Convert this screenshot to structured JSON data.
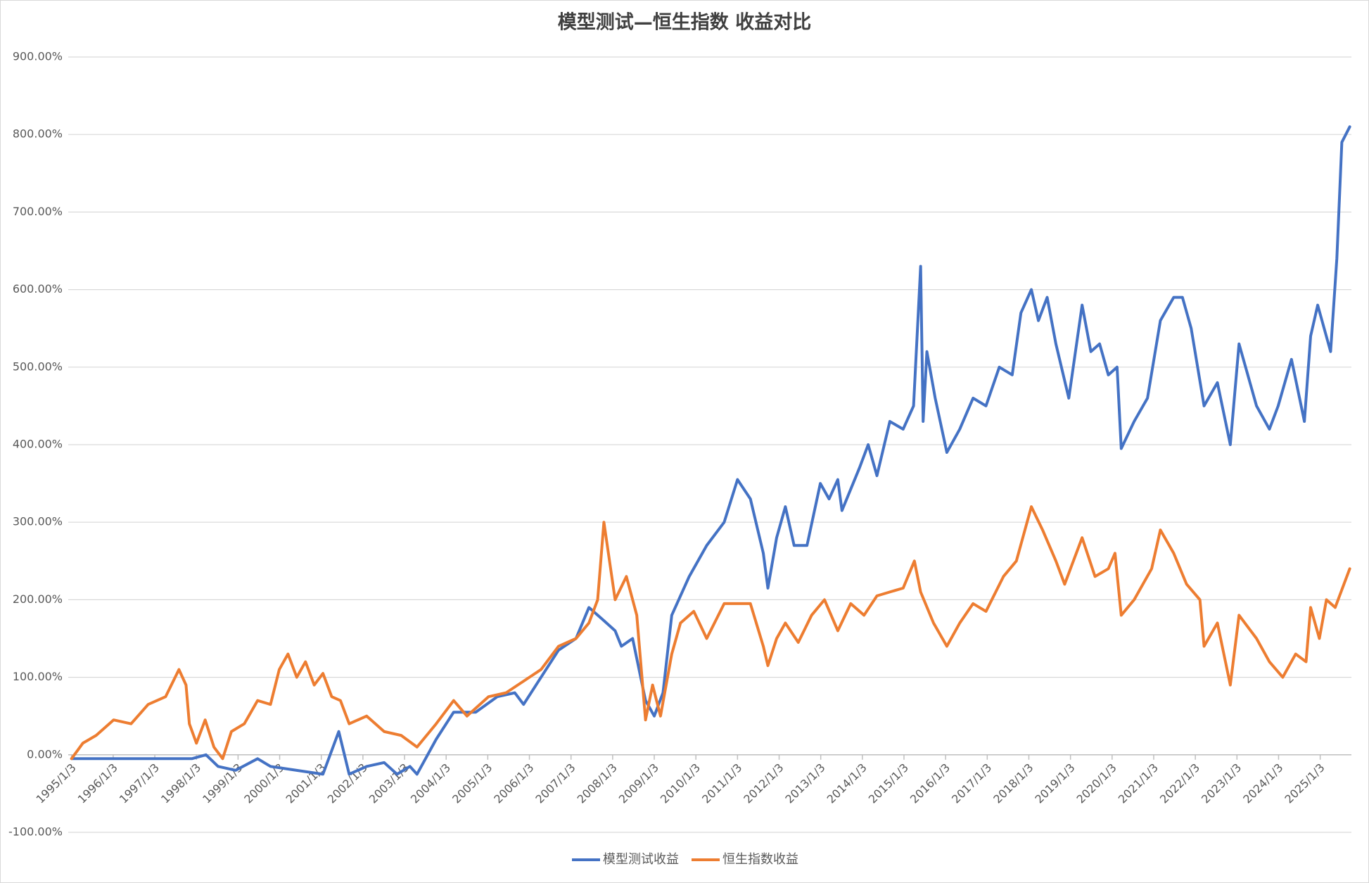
{
  "chart_data": {
    "type": "line",
    "title": "模型测试—恒生指数  收益对比",
    "xlim": [
      1994.92,
      2025.75
    ],
    "ylim": [
      -100,
      900
    ],
    "grid": true,
    "legend": "bottom",
    "xticks": [
      {
        "value": 1995,
        "label": "1995/1/3"
      },
      {
        "value": 1996,
        "label": "1996/1/3"
      },
      {
        "value": 1997,
        "label": "1997/1/3"
      },
      {
        "value": 1998,
        "label": "1998/1/3"
      },
      {
        "value": 1999,
        "label": "1999/1/3"
      },
      {
        "value": 2000,
        "label": "2000/1/3"
      },
      {
        "value": 2001,
        "label": "2001/1/3"
      },
      {
        "value": 2002,
        "label": "2002/1/3"
      },
      {
        "value": 2003,
        "label": "2003/1/3"
      },
      {
        "value": 2004,
        "label": "2004/1/3"
      },
      {
        "value": 2005,
        "label": "2005/1/3"
      },
      {
        "value": 2006,
        "label": "2006/1/3"
      },
      {
        "value": 2007,
        "label": "2007/1/3"
      },
      {
        "value": 2008,
        "label": "2008/1/3"
      },
      {
        "value": 2009,
        "label": "2009/1/3"
      },
      {
        "value": 2010,
        "label": "2010/1/3"
      },
      {
        "value": 2011,
        "label": "2011/1/3"
      },
      {
        "value": 2012,
        "label": "2012/1/3"
      },
      {
        "value": 2013,
        "label": "2013/1/3"
      },
      {
        "value": 2014,
        "label": "2014/1/3"
      },
      {
        "value": 2015,
        "label": "2015/1/3"
      },
      {
        "value": 2016,
        "label": "2016/1/3"
      },
      {
        "value": 2017,
        "label": "2017/1/3"
      },
      {
        "value": 2018,
        "label": "2018/1/3"
      },
      {
        "value": 2019,
        "label": "2019/1/3"
      },
      {
        "value": 2020,
        "label": "2020/1/3"
      },
      {
        "value": 2021,
        "label": "2021/1/3"
      },
      {
        "value": 2022,
        "label": "2022/1/3"
      },
      {
        "value": 2023,
        "label": "2023/1/3"
      },
      {
        "value": 2024,
        "label": "2024/1/3"
      },
      {
        "value": 2025,
        "label": "2025/1/3"
      }
    ],
    "yticks": [
      {
        "value": -100,
        "label": "-100.00%"
      },
      {
        "value": 0,
        "label": "0.00%"
      },
      {
        "value": 100,
        "label": "100.00%"
      },
      {
        "value": 200,
        "label": "200.00%"
      },
      {
        "value": 300,
        "label": "300.00%"
      },
      {
        "value": 400,
        "label": "400.00%"
      },
      {
        "value": 500,
        "label": "500.00%"
      },
      {
        "value": 600,
        "label": "600.00%"
      },
      {
        "value": 700,
        "label": "700.00%"
      },
      {
        "value": 800,
        "label": "800.00%"
      },
      {
        "value": 900,
        "label": "900.00%"
      }
    ],
    "series": [
      {
        "name": "模型测试收益",
        "color": "#4472c4",
        "x": [
          1995.0,
          1997.89,
          1998.23,
          1998.52,
          1998.94,
          1999.47,
          1999.78,
          2000.41,
          2001.04,
          2001.42,
          2001.67,
          2002.09,
          2002.51,
          2002.82,
          2003.13,
          2003.3,
          2003.76,
          2004.18,
          2004.71,
          2005.23,
          2005.65,
          2005.86,
          2006.28,
          2006.7,
          2007.12,
          2007.43,
          2007.75,
          2008.06,
          2008.21,
          2008.48,
          2008.79,
          2009.0,
          2009.21,
          2009.42,
          2009.84,
          2010.26,
          2010.68,
          2011.0,
          2011.31,
          2011.62,
          2011.73,
          2011.94,
          2012.15,
          2012.36,
          2012.67,
          2012.99,
          2013.2,
          2013.41,
          2013.51,
          2013.93,
          2014.14,
          2014.35,
          2014.66,
          2014.98,
          2015.23,
          2015.4,
          2015.46,
          2015.55,
          2015.75,
          2016.03,
          2016.34,
          2016.66,
          2016.97,
          2017.29,
          2017.6,
          2017.81,
          2018.06,
          2018.23,
          2018.44,
          2018.65,
          2018.96,
          2019.28,
          2019.49,
          2019.7,
          2019.91,
          2020.12,
          2020.22,
          2020.53,
          2020.85,
          2021.16,
          2021.48,
          2021.69,
          2021.9,
          2022.21,
          2022.53,
          2022.84,
          2023.05,
          2023.47,
          2023.78,
          2023.99,
          2024.31,
          2024.62,
          2024.77,
          2024.94,
          2025.25,
          2025.4,
          2025.52,
          2025.71
        ],
        "values": [
          -5,
          -5,
          0,
          -15,
          -20,
          -5,
          -15,
          -20,
          -25,
          30,
          -25,
          -15,
          -10,
          -25,
          -15,
          -25,
          20,
          55,
          55,
          75,
          80,
          65,
          100,
          135,
          150,
          190,
          175,
          160,
          140,
          150,
          70,
          50,
          80,
          180,
          230,
          270,
          300,
          355,
          330,
          260,
          215,
          280,
          320,
          270,
          270,
          350,
          330,
          355,
          315,
          370,
          400,
          360,
          430,
          420,
          450,
          630,
          430,
          520,
          460,
          390,
          420,
          460,
          450,
          500,
          490,
          570,
          600,
          560,
          590,
          530,
          460,
          580,
          520,
          530,
          490,
          500,
          395,
          430,
          460,
          560,
          590,
          590,
          550,
          450,
          480,
          400,
          530,
          450,
          420,
          450,
          510,
          430,
          540,
          580,
          520,
          640,
          790,
          810
        ]
      },
      {
        "name": "恒生指数收益",
        "color": "#ed7d31",
        "x": [
          1995.0,
          1995.27,
          1995.59,
          1996.01,
          1996.43,
          1996.84,
          1997.26,
          1997.58,
          1997.75,
          1997.83,
          1998.0,
          1998.21,
          1998.42,
          1998.63,
          1998.84,
          1999.15,
          1999.47,
          1999.78,
          1999.99,
          2000.2,
          2000.41,
          2000.62,
          2000.83,
          2001.04,
          2001.25,
          2001.46,
          2001.67,
          2002.09,
          2002.51,
          2002.92,
          2003.3,
          2003.76,
          2004.18,
          2004.5,
          2005.02,
          2005.44,
          2005.86,
          2006.28,
          2006.7,
          2007.12,
          2007.43,
          2007.64,
          2007.79,
          2008.06,
          2008.33,
          2008.58,
          2008.79,
          2008.96,
          2009.15,
          2009.42,
          2009.63,
          2009.95,
          2010.26,
          2010.68,
          2011.0,
          2011.31,
          2011.62,
          2011.73,
          2011.94,
          2012.15,
          2012.46,
          2012.78,
          2013.09,
          2013.41,
          2013.72,
          2014.04,
          2014.35,
          2014.66,
          2014.98,
          2015.25,
          2015.4,
          2015.71,
          2016.03,
          2016.34,
          2016.66,
          2016.97,
          2017.39,
          2017.7,
          2018.06,
          2018.33,
          2018.65,
          2018.86,
          2019.28,
          2019.59,
          2019.91,
          2020.07,
          2020.22,
          2020.53,
          2020.95,
          2021.16,
          2021.48,
          2021.79,
          2022.11,
          2022.21,
          2022.53,
          2022.84,
          2023.05,
          2023.47,
          2023.78,
          2024.1,
          2024.41,
          2024.66,
          2024.77,
          2024.98,
          2025.15,
          2025.36,
          2025.71
        ],
        "values": [
          -5,
          15,
          25,
          45,
          40,
          65,
          75,
          110,
          90,
          40,
          15,
          45,
          10,
          -5,
          30,
          40,
          70,
          65,
          110,
          130,
          100,
          120,
          90,
          105,
          75,
          70,
          40,
          50,
          30,
          25,
          10,
          40,
          70,
          50,
          75,
          80,
          95,
          110,
          140,
          150,
          170,
          200,
          300,
          200,
          230,
          180,
          45,
          90,
          50,
          130,
          170,
          185,
          150,
          195,
          195,
          195,
          140,
          115,
          150,
          170,
          145,
          180,
          200,
          160,
          195,
          180,
          205,
          210,
          215,
          250,
          210,
          170,
          140,
          170,
          195,
          185,
          230,
          250,
          320,
          290,
          250,
          220,
          280,
          230,
          240,
          260,
          180,
          200,
          240,
          290,
          260,
          220,
          200,
          140,
          170,
          90,
          180,
          150,
          120,
          100,
          130,
          120,
          190,
          150,
          200,
          190,
          240
        ]
      }
    ]
  }
}
